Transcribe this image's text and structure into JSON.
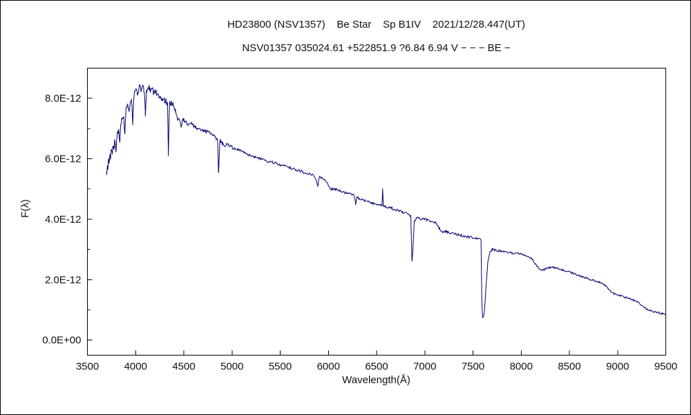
{
  "window_title": "HD23800 spectrum chart",
  "chart_data": {
    "type": "line",
    "title": "HD23800 (NSV1357)    Be Star    Sp B1IV    2021/12/28.447(UT)",
    "subtitle": "NSV01357 035024.61 +522851.9 ?6.84 6.94 V − − − BE −",
    "xlabel": "Wavelength(Å)",
    "ylabel": "F(λ)",
    "x_range": [
      3500,
      9500
    ],
    "y_range_e12": [
      -0.5,
      9.0
    ],
    "x_ticks": [
      3500,
      4000,
      4500,
      5000,
      5500,
      6000,
      6500,
      7000,
      7500,
      8000,
      8500,
      9000,
      9500
    ],
    "y_ticks": [
      {
        "v": 0,
        "label": "0.0E+00"
      },
      {
        "v": 2,
        "label": "2.0E-12"
      },
      {
        "v": 4,
        "label": "4.0E-12"
      },
      {
        "v": 6,
        "label": "6.0E-12"
      },
      {
        "v": 8,
        "label": "8.0E-12"
      }
    ],
    "y_minor_ticks": [
      1,
      3,
      5,
      7
    ],
    "grid": false,
    "legend": "none",
    "line_color": "#000070",
    "frame_color": "#000000",
    "flux_scale": "1e-12",
    "series": [
      {
        "name": "HD23800 (NSV1357) spectrum",
        "points": [
          [
            3700,
            5.55
          ],
          [
            3706,
            5.8
          ],
          [
            3712,
            5.7
          ],
          [
            3718,
            6.0
          ],
          [
            3726,
            5.9
          ],
          [
            3734,
            6.15
          ],
          [
            3742,
            6.05
          ],
          [
            3750,
            6.3
          ],
          [
            3758,
            6.2
          ],
          [
            3766,
            6.45
          ],
          [
            3774,
            6.35
          ],
          [
            3782,
            6.55
          ],
          [
            3790,
            6.45
          ],
          [
            3797,
            6.3
          ],
          [
            3806,
            6.75
          ],
          [
            3815,
            6.85
          ],
          [
            3825,
            6.9
          ],
          [
            3835,
            6.5
          ],
          [
            3845,
            7.1
          ],
          [
            3855,
            7.25
          ],
          [
            3865,
            7.3
          ],
          [
            3875,
            7.4
          ],
          [
            3889,
            6.85
          ],
          [
            3900,
            7.6
          ],
          [
            3910,
            7.7
          ],
          [
            3920,
            7.8
          ],
          [
            3933,
            7.5
          ],
          [
            3944,
            7.9
          ],
          [
            3955,
            8.0
          ],
          [
            3962,
            7.8
          ],
          [
            3970,
            7.05
          ],
          [
            3980,
            8.0
          ],
          [
            3990,
            8.2
          ],
          [
            4000,
            8.3
          ],
          [
            4012,
            8.2
          ],
          [
            4026,
            8.1
          ],
          [
            4040,
            8.45
          ],
          [
            4055,
            8.3
          ],
          [
            4070,
            8.4
          ],
          [
            4085,
            8.3
          ],
          [
            4092,
            8.2
          ],
          [
            4101,
            7.45
          ],
          [
            4112,
            8.2
          ],
          [
            4125,
            8.3
          ],
          [
            4140,
            8.35
          ],
          [
            4155,
            8.25
          ],
          [
            4170,
            8.3
          ],
          [
            4185,
            8.2
          ],
          [
            4200,
            8.25
          ],
          [
            4220,
            8.15
          ],
          [
            4240,
            8.1
          ],
          [
            4260,
            8.05
          ],
          [
            4280,
            8.0
          ],
          [
            4300,
            7.95
          ],
          [
            4315,
            7.9
          ],
          [
            4330,
            7.8
          ],
          [
            4340,
            6.2
          ],
          [
            4352,
            7.8
          ],
          [
            4370,
            7.85
          ],
          [
            4390,
            7.8
          ],
          [
            4410,
            7.6
          ],
          [
            4430,
            7.4
          ],
          [
            4450,
            7.3
          ],
          [
            4471,
            7.1
          ],
          [
            4490,
            7.3
          ],
          [
            4510,
            7.25
          ],
          [
            4530,
            7.2
          ],
          [
            4550,
            7.15
          ],
          [
            4575,
            7.2
          ],
          [
            4600,
            7.1
          ],
          [
            4625,
            7.05
          ],
          [
            4650,
            7.0
          ],
          [
            4675,
            6.97
          ],
          [
            4700,
            6.95
          ],
          [
            4725,
            6.9
          ],
          [
            4750,
            6.9
          ],
          [
            4775,
            6.85
          ],
          [
            4800,
            6.8
          ],
          [
            4825,
            6.72
          ],
          [
            4850,
            6.65
          ],
          [
            4861,
            5.5
          ],
          [
            4875,
            6.6
          ],
          [
            4890,
            6.55
          ],
          [
            4905,
            6.5
          ],
          [
            4922,
            6.35
          ],
          [
            4940,
            6.5
          ],
          [
            4960,
            6.45
          ],
          [
            4980,
            6.42
          ],
          [
            5000,
            6.4
          ],
          [
            5015,
            6.28
          ],
          [
            5030,
            6.35
          ],
          [
            5060,
            6.3
          ],
          [
            5090,
            6.28
          ],
          [
            5120,
            6.22
          ],
          [
            5150,
            6.18
          ],
          [
            5180,
            6.12
          ],
          [
            5210,
            6.1
          ],
          [
            5240,
            6.05
          ],
          [
            5270,
            6.02
          ],
          [
            5300,
            6.0
          ],
          [
            5340,
            5.95
          ],
          [
            5380,
            5.9
          ],
          [
            5420,
            5.88
          ],
          [
            5460,
            5.83
          ],
          [
            5500,
            5.8
          ],
          [
            5540,
            5.76
          ],
          [
            5580,
            5.72
          ],
          [
            5620,
            5.68
          ],
          [
            5660,
            5.64
          ],
          [
            5700,
            5.6
          ],
          [
            5740,
            5.56
          ],
          [
            5780,
            5.52
          ],
          [
            5820,
            5.48
          ],
          [
            5850,
            5.45
          ],
          [
            5876,
            5.28
          ],
          [
            5890,
            5.12
          ],
          [
            5905,
            5.38
          ],
          [
            5930,
            5.35
          ],
          [
            5960,
            5.3
          ],
          [
            5990,
            5.22
          ],
          [
            6010,
            5.05
          ],
          [
            6030,
            5.0
          ],
          [
            6060,
            5.0
          ],
          [
            6090,
            4.97
          ],
          [
            6120,
            4.95
          ],
          [
            6150,
            4.9
          ],
          [
            6180,
            4.88
          ],
          [
            6210,
            4.85
          ],
          [
            6240,
            4.82
          ],
          [
            6270,
            4.78
          ],
          [
            6283,
            4.5
          ],
          [
            6295,
            4.72
          ],
          [
            6320,
            4.68
          ],
          [
            6350,
            4.65
          ],
          [
            6380,
            4.62
          ],
          [
            6410,
            4.58
          ],
          [
            6440,
            4.55
          ],
          [
            6470,
            4.52
          ],
          [
            6500,
            4.5
          ],
          [
            6525,
            4.47
          ],
          [
            6545,
            4.45
          ],
          [
            6555,
            4.45
          ],
          [
            6563,
            5.05
          ],
          [
            6570,
            4.45
          ],
          [
            6590,
            4.42
          ],
          [
            6620,
            4.4
          ],
          [
            6650,
            4.37
          ],
          [
            6680,
            4.33
          ],
          [
            6710,
            4.3
          ],
          [
            6740,
            4.27
          ],
          [
            6770,
            4.23
          ],
          [
            6800,
            4.2
          ],
          [
            6830,
            4.15
          ],
          [
            6855,
            4.1
          ],
          [
            6867,
            2.6
          ],
          [
            6878,
            3.1
          ],
          [
            6890,
            3.9
          ],
          [
            6910,
            4.05
          ],
          [
            6940,
            4.02
          ],
          [
            6970,
            4.0
          ],
          [
            7000,
            4.0
          ],
          [
            7030,
            3.97
          ],
          [
            7060,
            3.95
          ],
          [
            7090,
            3.92
          ],
          [
            7120,
            3.88
          ],
          [
            7150,
            3.7
          ],
          [
            7170,
            3.6
          ],
          [
            7190,
            3.55
          ],
          [
            7215,
            3.6
          ],
          [
            7240,
            3.57
          ],
          [
            7265,
            3.55
          ],
          [
            7290,
            3.52
          ],
          [
            7320,
            3.5
          ],
          [
            7350,
            3.5
          ],
          [
            7380,
            3.47
          ],
          [
            7410,
            3.45
          ],
          [
            7440,
            3.42
          ],
          [
            7470,
            3.4
          ],
          [
            7500,
            3.4
          ],
          [
            7530,
            3.37
          ],
          [
            7560,
            3.33
          ],
          [
            7583,
            3.3
          ],
          [
            7592,
            1.2
          ],
          [
            7600,
            0.72
          ],
          [
            7610,
            0.8
          ],
          [
            7620,
            1.0
          ],
          [
            7635,
            1.8
          ],
          [
            7655,
            2.6
          ],
          [
            7675,
            2.9
          ],
          [
            7700,
            3.0
          ],
          [
            7730,
            2.97
          ],
          [
            7760,
            2.95
          ],
          [
            7790,
            2.95
          ],
          [
            7820,
            2.92
          ],
          [
            7850,
            2.9
          ],
          [
            7880,
            2.9
          ],
          [
            7910,
            2.88
          ],
          [
            7940,
            2.87
          ],
          [
            7970,
            2.85
          ],
          [
            8000,
            2.85
          ],
          [
            8030,
            2.82
          ],
          [
            8060,
            2.78
          ],
          [
            8090,
            2.75
          ],
          [
            8120,
            2.65
          ],
          [
            8150,
            2.5
          ],
          [
            8180,
            2.38
          ],
          [
            8210,
            2.3
          ],
          [
            8240,
            2.33
          ],
          [
            8270,
            2.38
          ],
          [
            8300,
            2.4
          ],
          [
            8330,
            2.4
          ],
          [
            8360,
            2.38
          ],
          [
            8390,
            2.35
          ],
          [
            8420,
            2.33
          ],
          [
            8450,
            2.3
          ],
          [
            8480,
            2.27
          ],
          [
            8510,
            2.24
          ],
          [
            8540,
            2.2
          ],
          [
            8570,
            2.17
          ],
          [
            8600,
            2.14
          ],
          [
            8630,
            2.1
          ],
          [
            8660,
            2.07
          ],
          [
            8690,
            2.04
          ],
          [
            8720,
            2.0
          ],
          [
            8750,
            1.98
          ],
          [
            8780,
            1.95
          ],
          [
            8810,
            1.92
          ],
          [
            8840,
            1.88
          ],
          [
            8870,
            1.82
          ],
          [
            8900,
            1.72
          ],
          [
            8930,
            1.6
          ],
          [
            8960,
            1.53
          ],
          [
            9000,
            1.5
          ],
          [
            9040,
            1.46
          ],
          [
            9080,
            1.42
          ],
          [
            9120,
            1.38
          ],
          [
            9160,
            1.33
          ],
          [
            9200,
            1.28
          ],
          [
            9240,
            1.18
          ],
          [
            9280,
            1.08
          ],
          [
            9310,
            1.02
          ],
          [
            9340,
            0.98
          ],
          [
            9370,
            0.95
          ],
          [
            9400,
            0.92
          ],
          [
            9430,
            0.9
          ],
          [
            9460,
            0.88
          ],
          [
            9500,
            0.88
          ]
        ]
      }
    ]
  }
}
